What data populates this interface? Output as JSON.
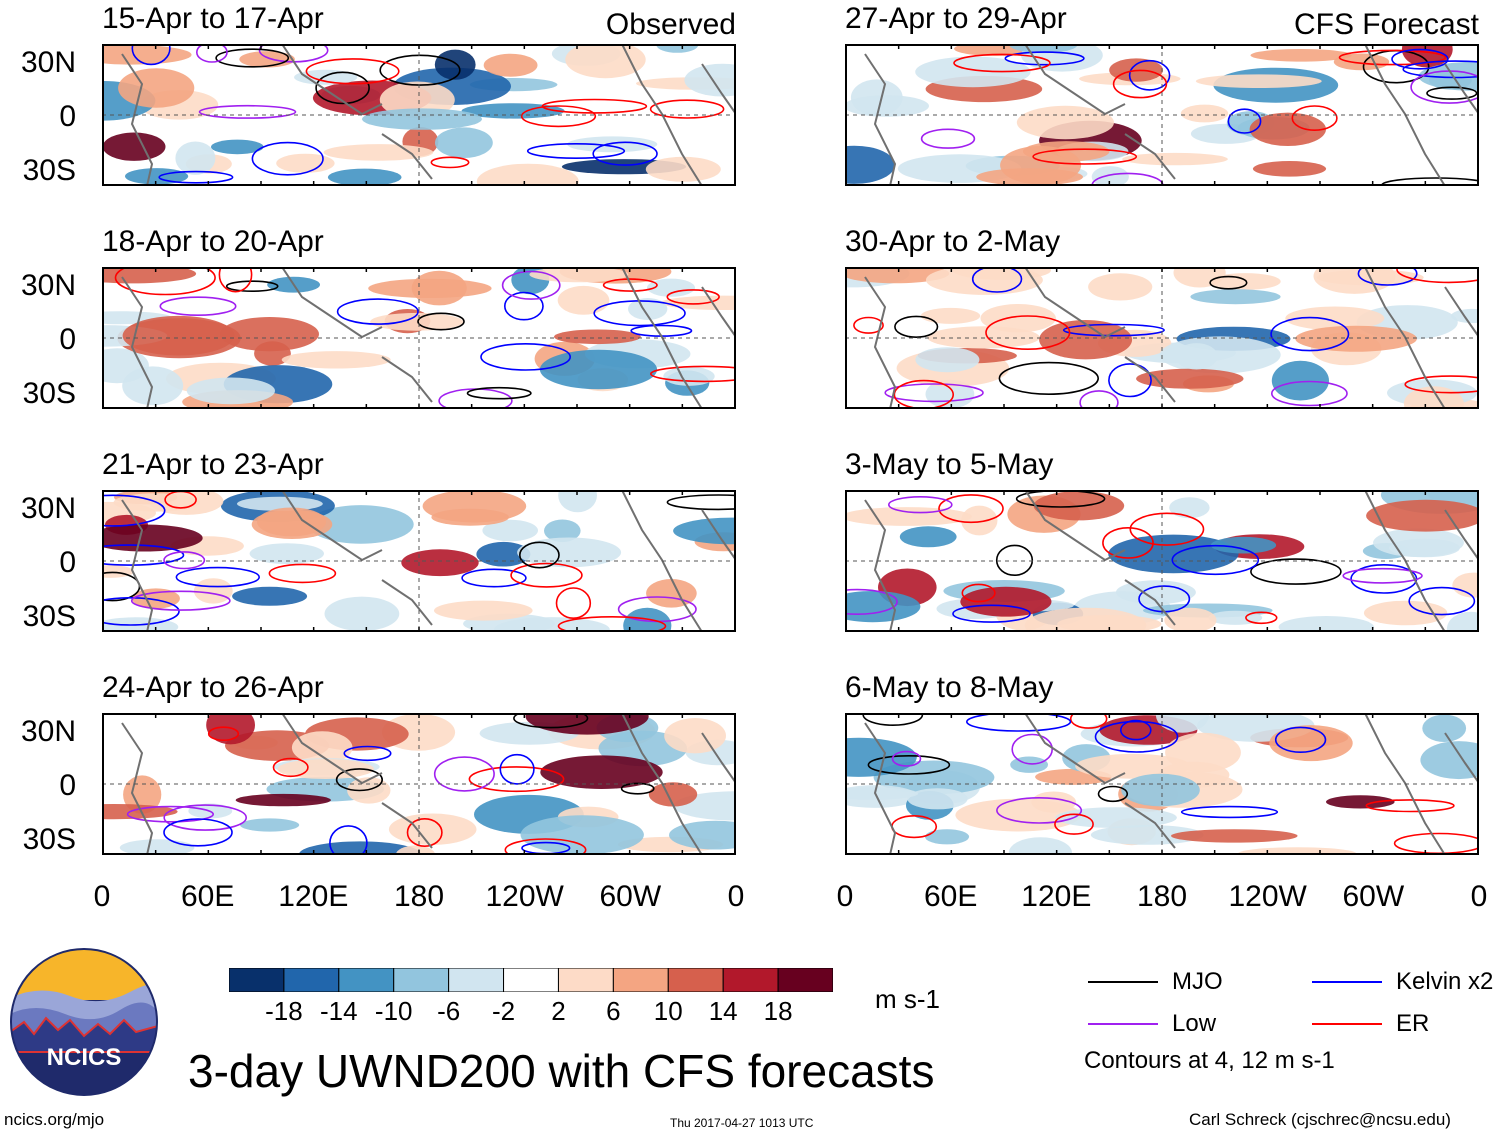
{
  "panels": [
    {
      "date": "15-Apr to 17-Apr",
      "label": "Observed",
      "kind": "observed"
    },
    {
      "date": "27-Apr to 29-Apr",
      "label": "CFS Forecast",
      "kind": "forecast"
    },
    {
      "date": "18-Apr to 20-Apr",
      "label": "",
      "kind": "observed"
    },
    {
      "date": "30-Apr to 2-May",
      "label": "",
      "kind": "forecast"
    },
    {
      "date": "21-Apr to 23-Apr",
      "label": "",
      "kind": "observed"
    },
    {
      "date": "3-May to 5-May",
      "label": "",
      "kind": "forecast"
    },
    {
      "date": "24-Apr to 26-Apr",
      "label": "",
      "kind": "observed"
    },
    {
      "date": "6-May to 8-May",
      "label": "",
      "kind": "forecast"
    }
  ],
  "lat_labels": [
    "30N",
    "0",
    "30S"
  ],
  "lon_labels": [
    "0",
    "60E",
    "120E",
    "180",
    "120W",
    "60W",
    "0"
  ],
  "colorbar": {
    "ticks": [
      "-18",
      "-14",
      "-10",
      "-6",
      "-2",
      "2",
      "6",
      "10",
      "14",
      "18"
    ],
    "colors": [
      "#08306b",
      "#2166ac",
      "#4393c3",
      "#92c5de",
      "#d1e5f0",
      "#ffffff",
      "#fddbc7",
      "#f4a582",
      "#d6604d",
      "#b2182b",
      "#67001f"
    ],
    "units": "m s-1"
  },
  "legend": {
    "items": [
      {
        "name": "MJO",
        "color": "#000000"
      },
      {
        "name": "Kelvin x2",
        "color": "#0000ff"
      },
      {
        "name": "Low",
        "color": "#a020f0"
      },
      {
        "name": "ER",
        "color": "#ff0000"
      }
    ],
    "note": "Contours at 4, 12 m s-1"
  },
  "title": "3-day UWND200 with CFS forecasts",
  "logo_text": "NCICS",
  "footer": {
    "left": "ncics.org/mjo",
    "center": "Thu 2017-04-27 1013 UTC",
    "right": "Carl Schreck (cjschrec@ncsu.edu)"
  }
}
